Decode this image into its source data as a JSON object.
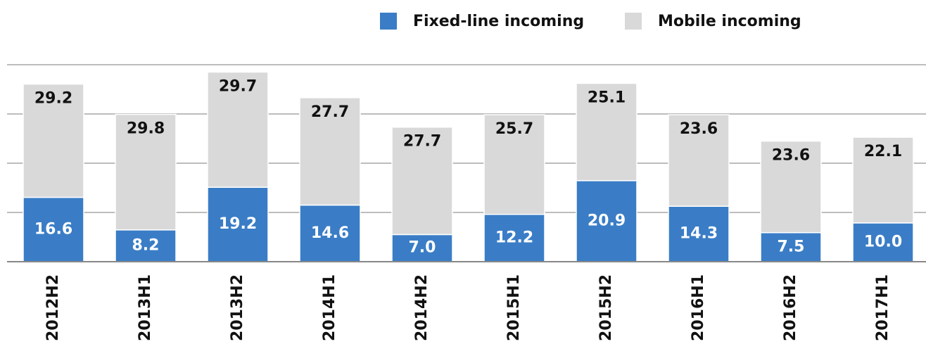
{
  "chart_data": {
    "type": "stacked_bar",
    "categories": [
      "2012H2",
      "2013H1",
      "2013H2",
      "2014H1",
      "2014H2",
      "2015H1",
      "2015H2",
      "2016H1",
      "2016H2",
      "2017H1"
    ],
    "series": [
      {
        "name": "Fixed-line incoming",
        "color": "#3a7dc6",
        "values": [
          16.6,
          8.2,
          19.2,
          14.6,
          7.0,
          12.2,
          20.9,
          14.3,
          7.5,
          10.0
        ],
        "value_labels": [
          "16.6",
          "8.2",
          "19.2",
          "14.6",
          "7.0",
          "12.2",
          "20.9",
          "14.3",
          "7.5",
          "10.0"
        ]
      },
      {
        "name": "Mobile incoming",
        "color": "#d9d9d9",
        "values": [
          29.2,
          29.8,
          29.7,
          27.7,
          27.7,
          25.7,
          25.1,
          23.6,
          23.6,
          22.1
        ],
        "value_labels": [
          "29.2",
          "29.8",
          "29.7",
          "27.7",
          "27.7",
          "25.7",
          "25.1",
          "23.6",
          "23.6",
          "22.1"
        ]
      }
    ],
    "ylim": [
      0,
      50.8
    ],
    "grid": true,
    "legend": "top"
  }
}
